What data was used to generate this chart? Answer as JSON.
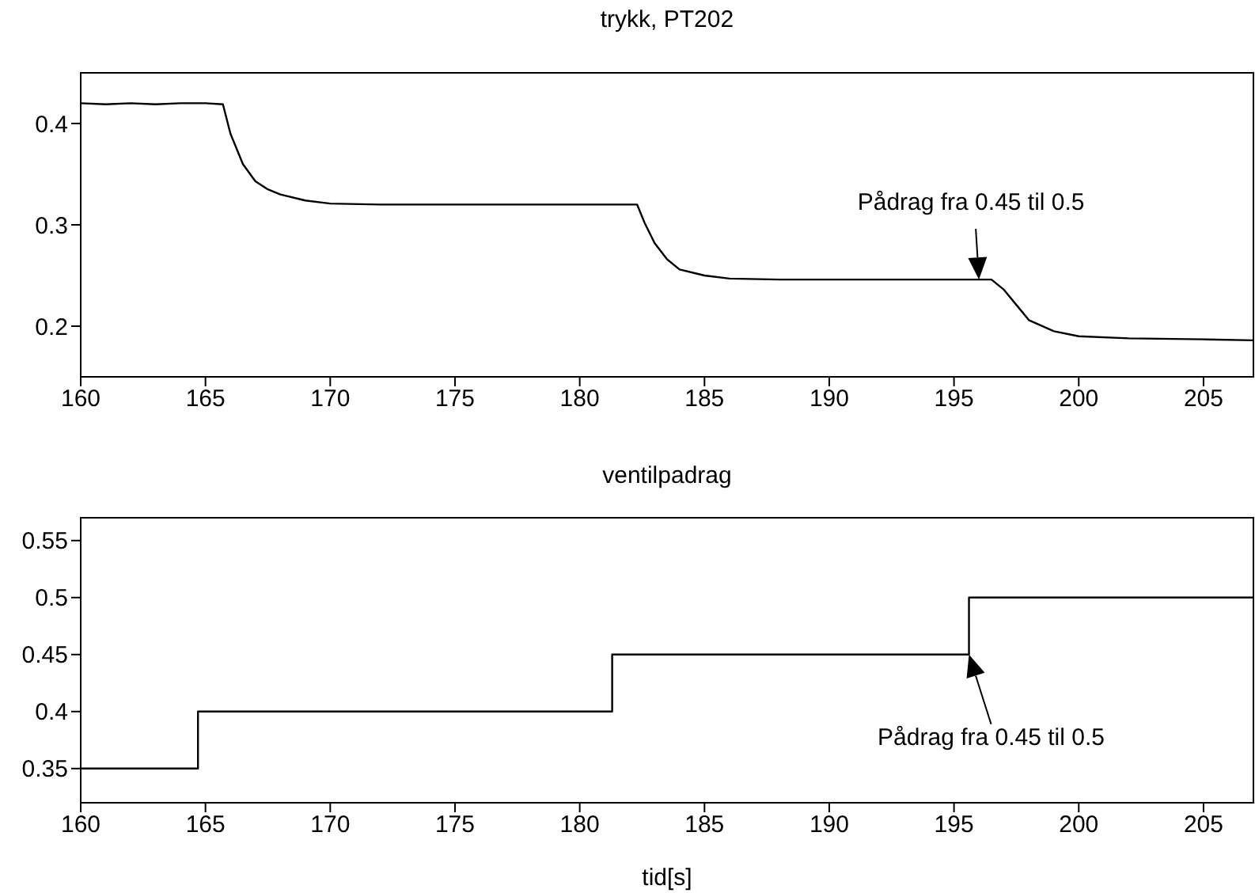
{
  "chart_data": [
    {
      "type": "line",
      "title": "trykk, PT202",
      "x": [
        160,
        161,
        162,
        163,
        164,
        165,
        165.7,
        166,
        166.5,
        167,
        167.5,
        168,
        169,
        170,
        172,
        175,
        178,
        180,
        182.3,
        182.6,
        183,
        183.5,
        184,
        185,
        186,
        188,
        190,
        192,
        194,
        196.5,
        197,
        197.5,
        198,
        199,
        200,
        202,
        205,
        207
      ],
      "series": [
        {
          "color": "#000000",
          "values": [
            0.42,
            0.419,
            0.42,
            0.419,
            0.42,
            0.42,
            0.419,
            0.39,
            0.36,
            0.343,
            0.335,
            0.33,
            0.324,
            0.321,
            0.32,
            0.32,
            0.32,
            0.32,
            0.32,
            0.302,
            0.282,
            0.266,
            0.256,
            0.25,
            0.247,
            0.246,
            0.246,
            0.246,
            0.246,
            0.246,
            0.236,
            0.221,
            0.206,
            0.195,
            0.19,
            0.188,
            0.187,
            0.186
          ]
        }
      ],
      "xlim": [
        160,
        207
      ],
      "xticks": [
        160,
        165,
        170,
        175,
        180,
        185,
        190,
        195,
        200,
        205
      ],
      "ylim": [
        0.15,
        0.45
      ],
      "yticks": [
        0.2,
        0.3,
        0.4
      ],
      "annotations": [
        {
          "text": "Pådrag fra 0.45 til 0.5",
          "x": 196,
          "y": 0.246
        }
      ],
      "grid": false,
      "legend": false,
      "marker": "none",
      "line_style": "solid"
    },
    {
      "type": "step",
      "title": "ventilpadrag",
      "xlabel": "tid[s]",
      "x": [
        160,
        164.7,
        181.3,
        195.6,
        207
      ],
      "series": [
        {
          "color": "#000000",
          "values": [
            0.35,
            0.4,
            0.45,
            0.5,
            0.5
          ]
        }
      ],
      "xlim": [
        160,
        207
      ],
      "xticks": [
        160,
        165,
        170,
        175,
        180,
        185,
        190,
        195,
        200,
        205
      ],
      "ylim": [
        0.32,
        0.57
      ],
      "yticks": [
        0.35,
        0.4,
        0.45,
        0.5,
        0.55
      ],
      "annotations": [
        {
          "text": "Pådrag fra 0.45 til 0.5",
          "x": 195.6,
          "y": 0.45
        }
      ],
      "grid": false,
      "legend": false,
      "marker": "none",
      "line_style": "solid"
    }
  ]
}
